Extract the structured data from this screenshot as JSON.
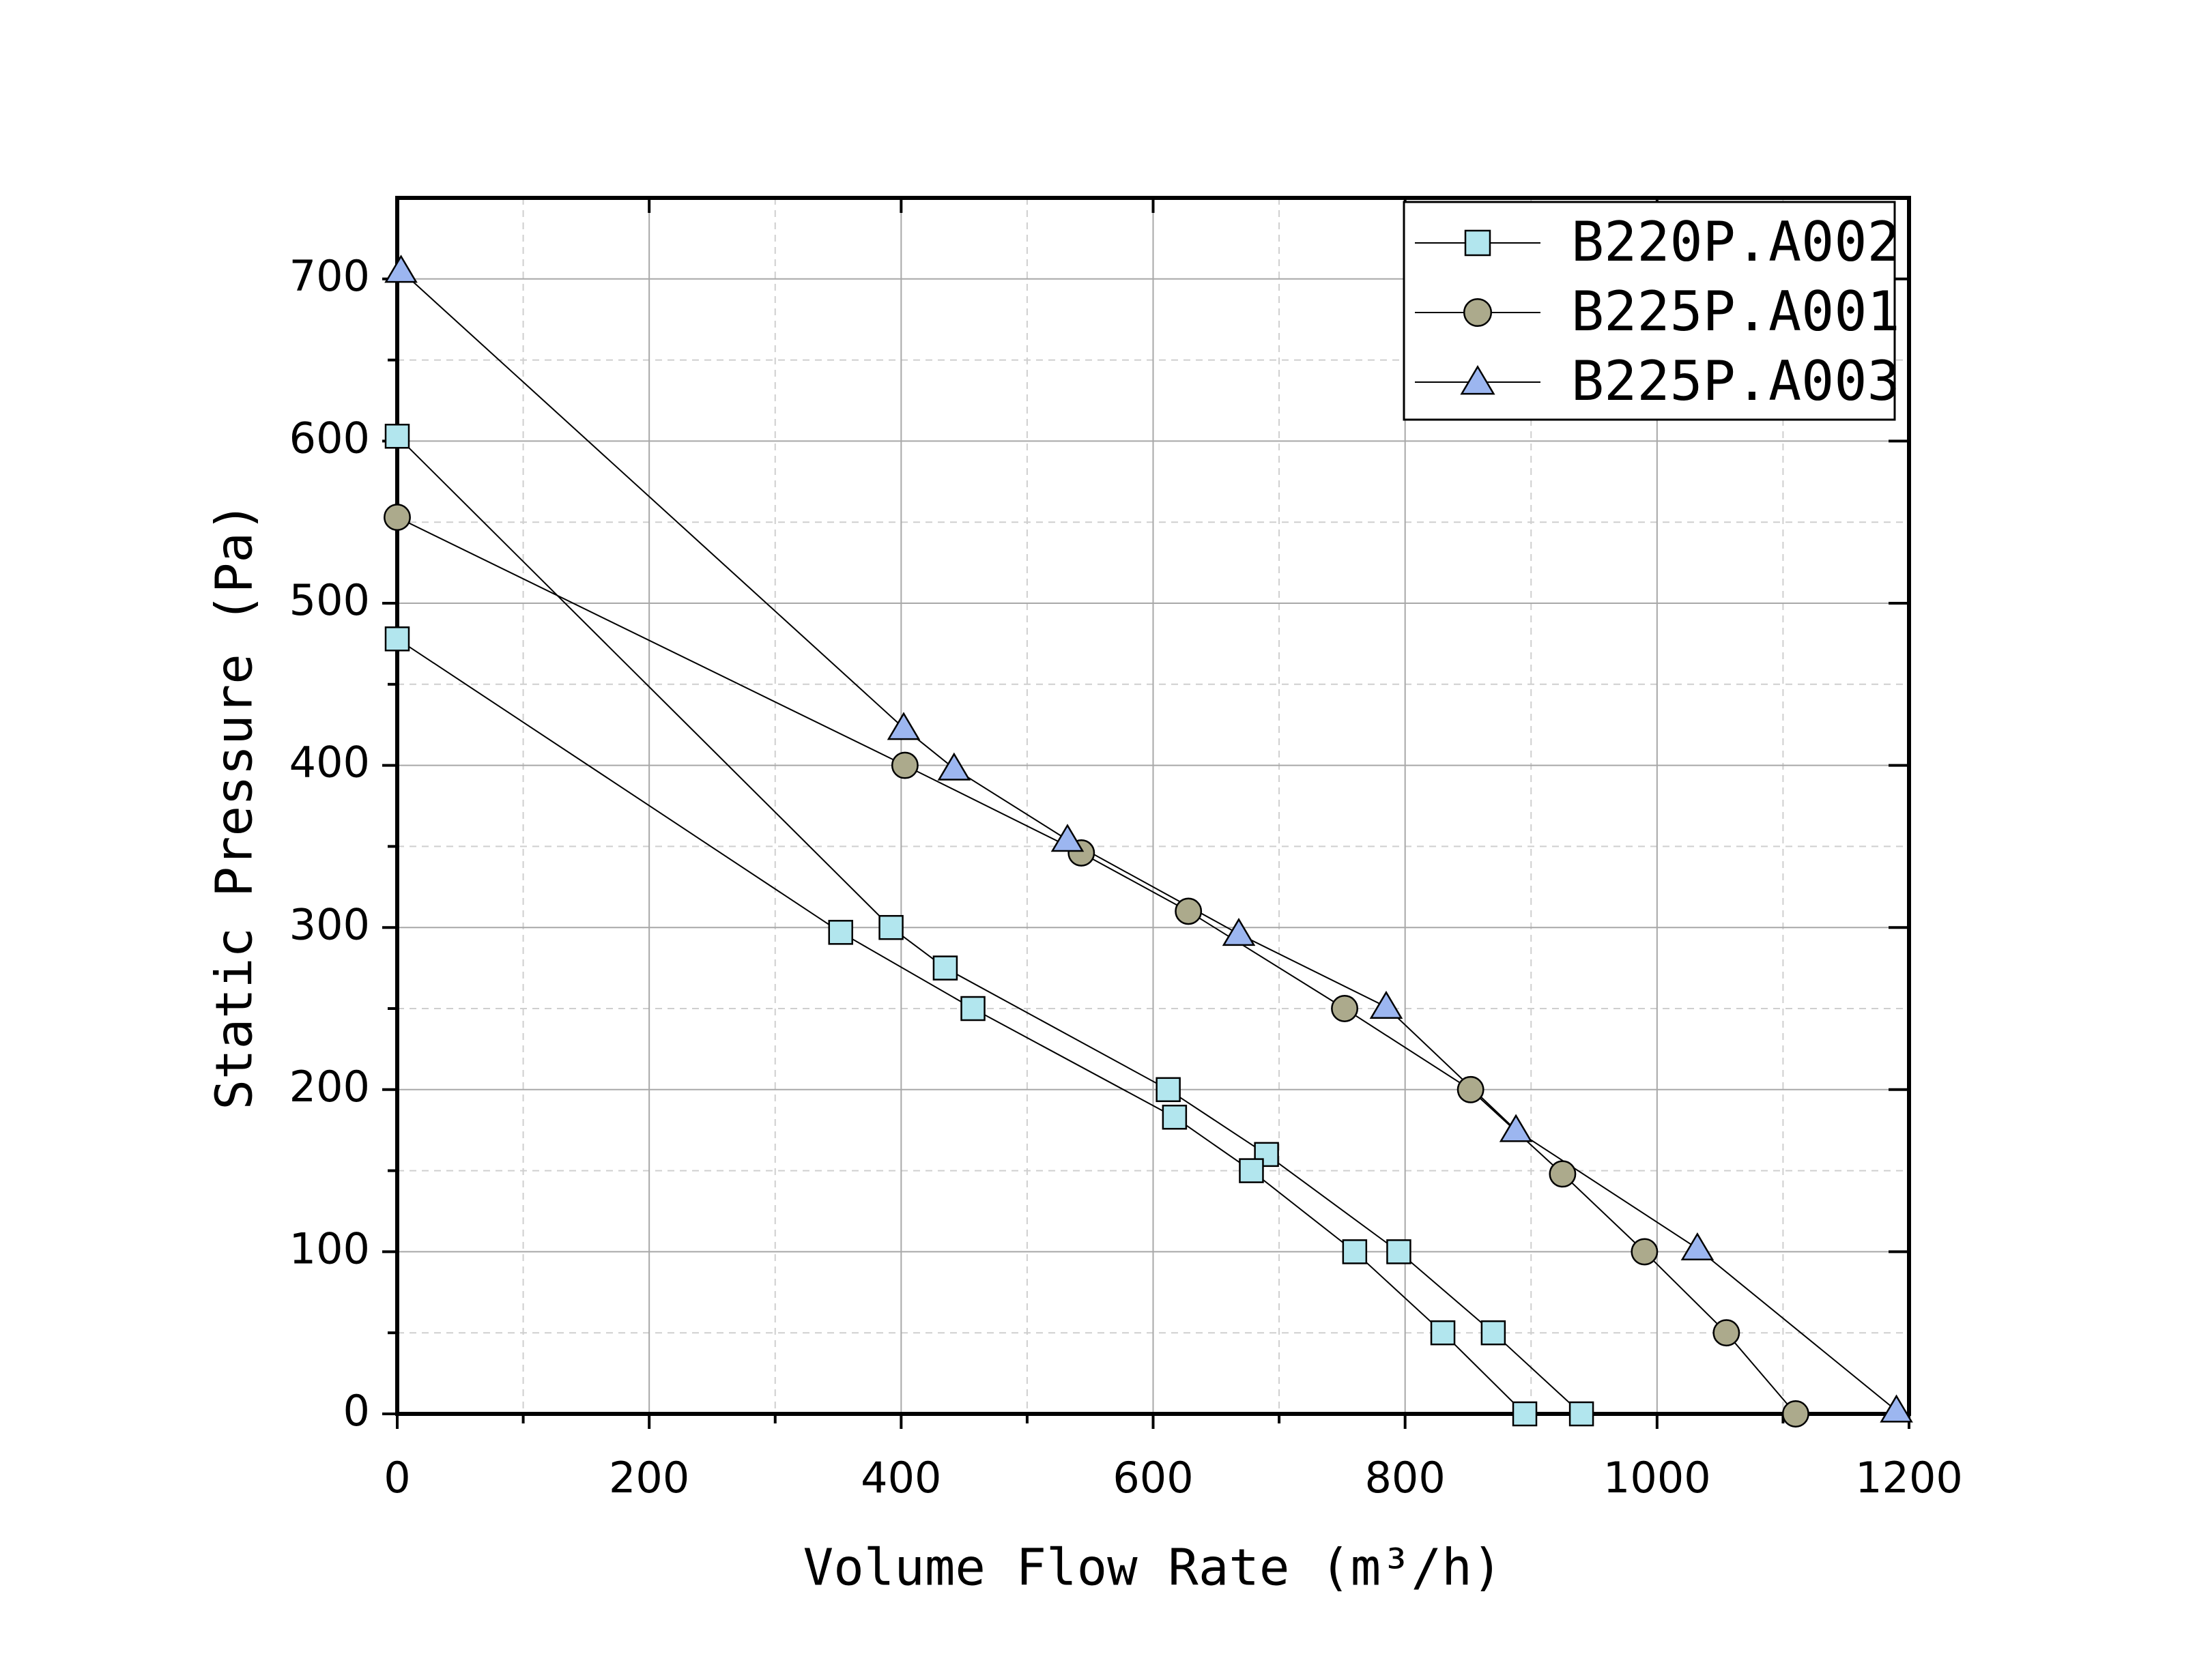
{
  "chart_data": {
    "type": "line",
    "x_label": "Volume Flow Rate (m³/h)",
    "y_label": "Static Pressure (Pa)",
    "xlim": [
      0,
      1200
    ],
    "ylim": [
      0,
      750
    ],
    "xticks": [
      0,
      200,
      400,
      600,
      800,
      1000,
      1200
    ],
    "yticks": [
      0,
      100,
      200,
      300,
      400,
      500,
      600,
      700
    ],
    "xminorticks": [
      100,
      300,
      500,
      700,
      900,
      1100
    ],
    "yminorticks": [
      50,
      150,
      250,
      350,
      450,
      550,
      650
    ],
    "grid": true,
    "legend": "upper right",
    "series": [
      {
        "name": "B220P.A002",
        "color": "#b2e6ee",
        "marker": "square",
        "x": [
          0,
          392,
          435,
          612,
          690,
          795,
          870,
          940,
          null,
          0,
          352,
          457,
          617,
          678,
          760,
          830,
          895
        ],
        "values": [
          603,
          300,
          275,
          200,
          160,
          100,
          50,
          0,
          null,
          478,
          297,
          250,
          183,
          150,
          100,
          50,
          0
        ]
      },
      {
        "name": "B225P.A001",
        "color": "#acaa8c",
        "marker": "circle",
        "x": [
          0,
          403,
          543,
          628,
          752,
          852,
          925,
          990,
          1055,
          1110
        ],
        "values": [
          553,
          400,
          346,
          310,
          250,
          200,
          148,
          100,
          50,
          0
        ]
      },
      {
        "name": "B225P.A003",
        "color": "#9cb6f0",
        "marker": "triangle",
        "x": [
          3,
          402,
          442,
          532,
          668,
          785,
          888,
          1032,
          1190
        ],
        "values": [
          705,
          423,
          398,
          354,
          296,
          251,
          175,
          102,
          2
        ]
      }
    ]
  }
}
